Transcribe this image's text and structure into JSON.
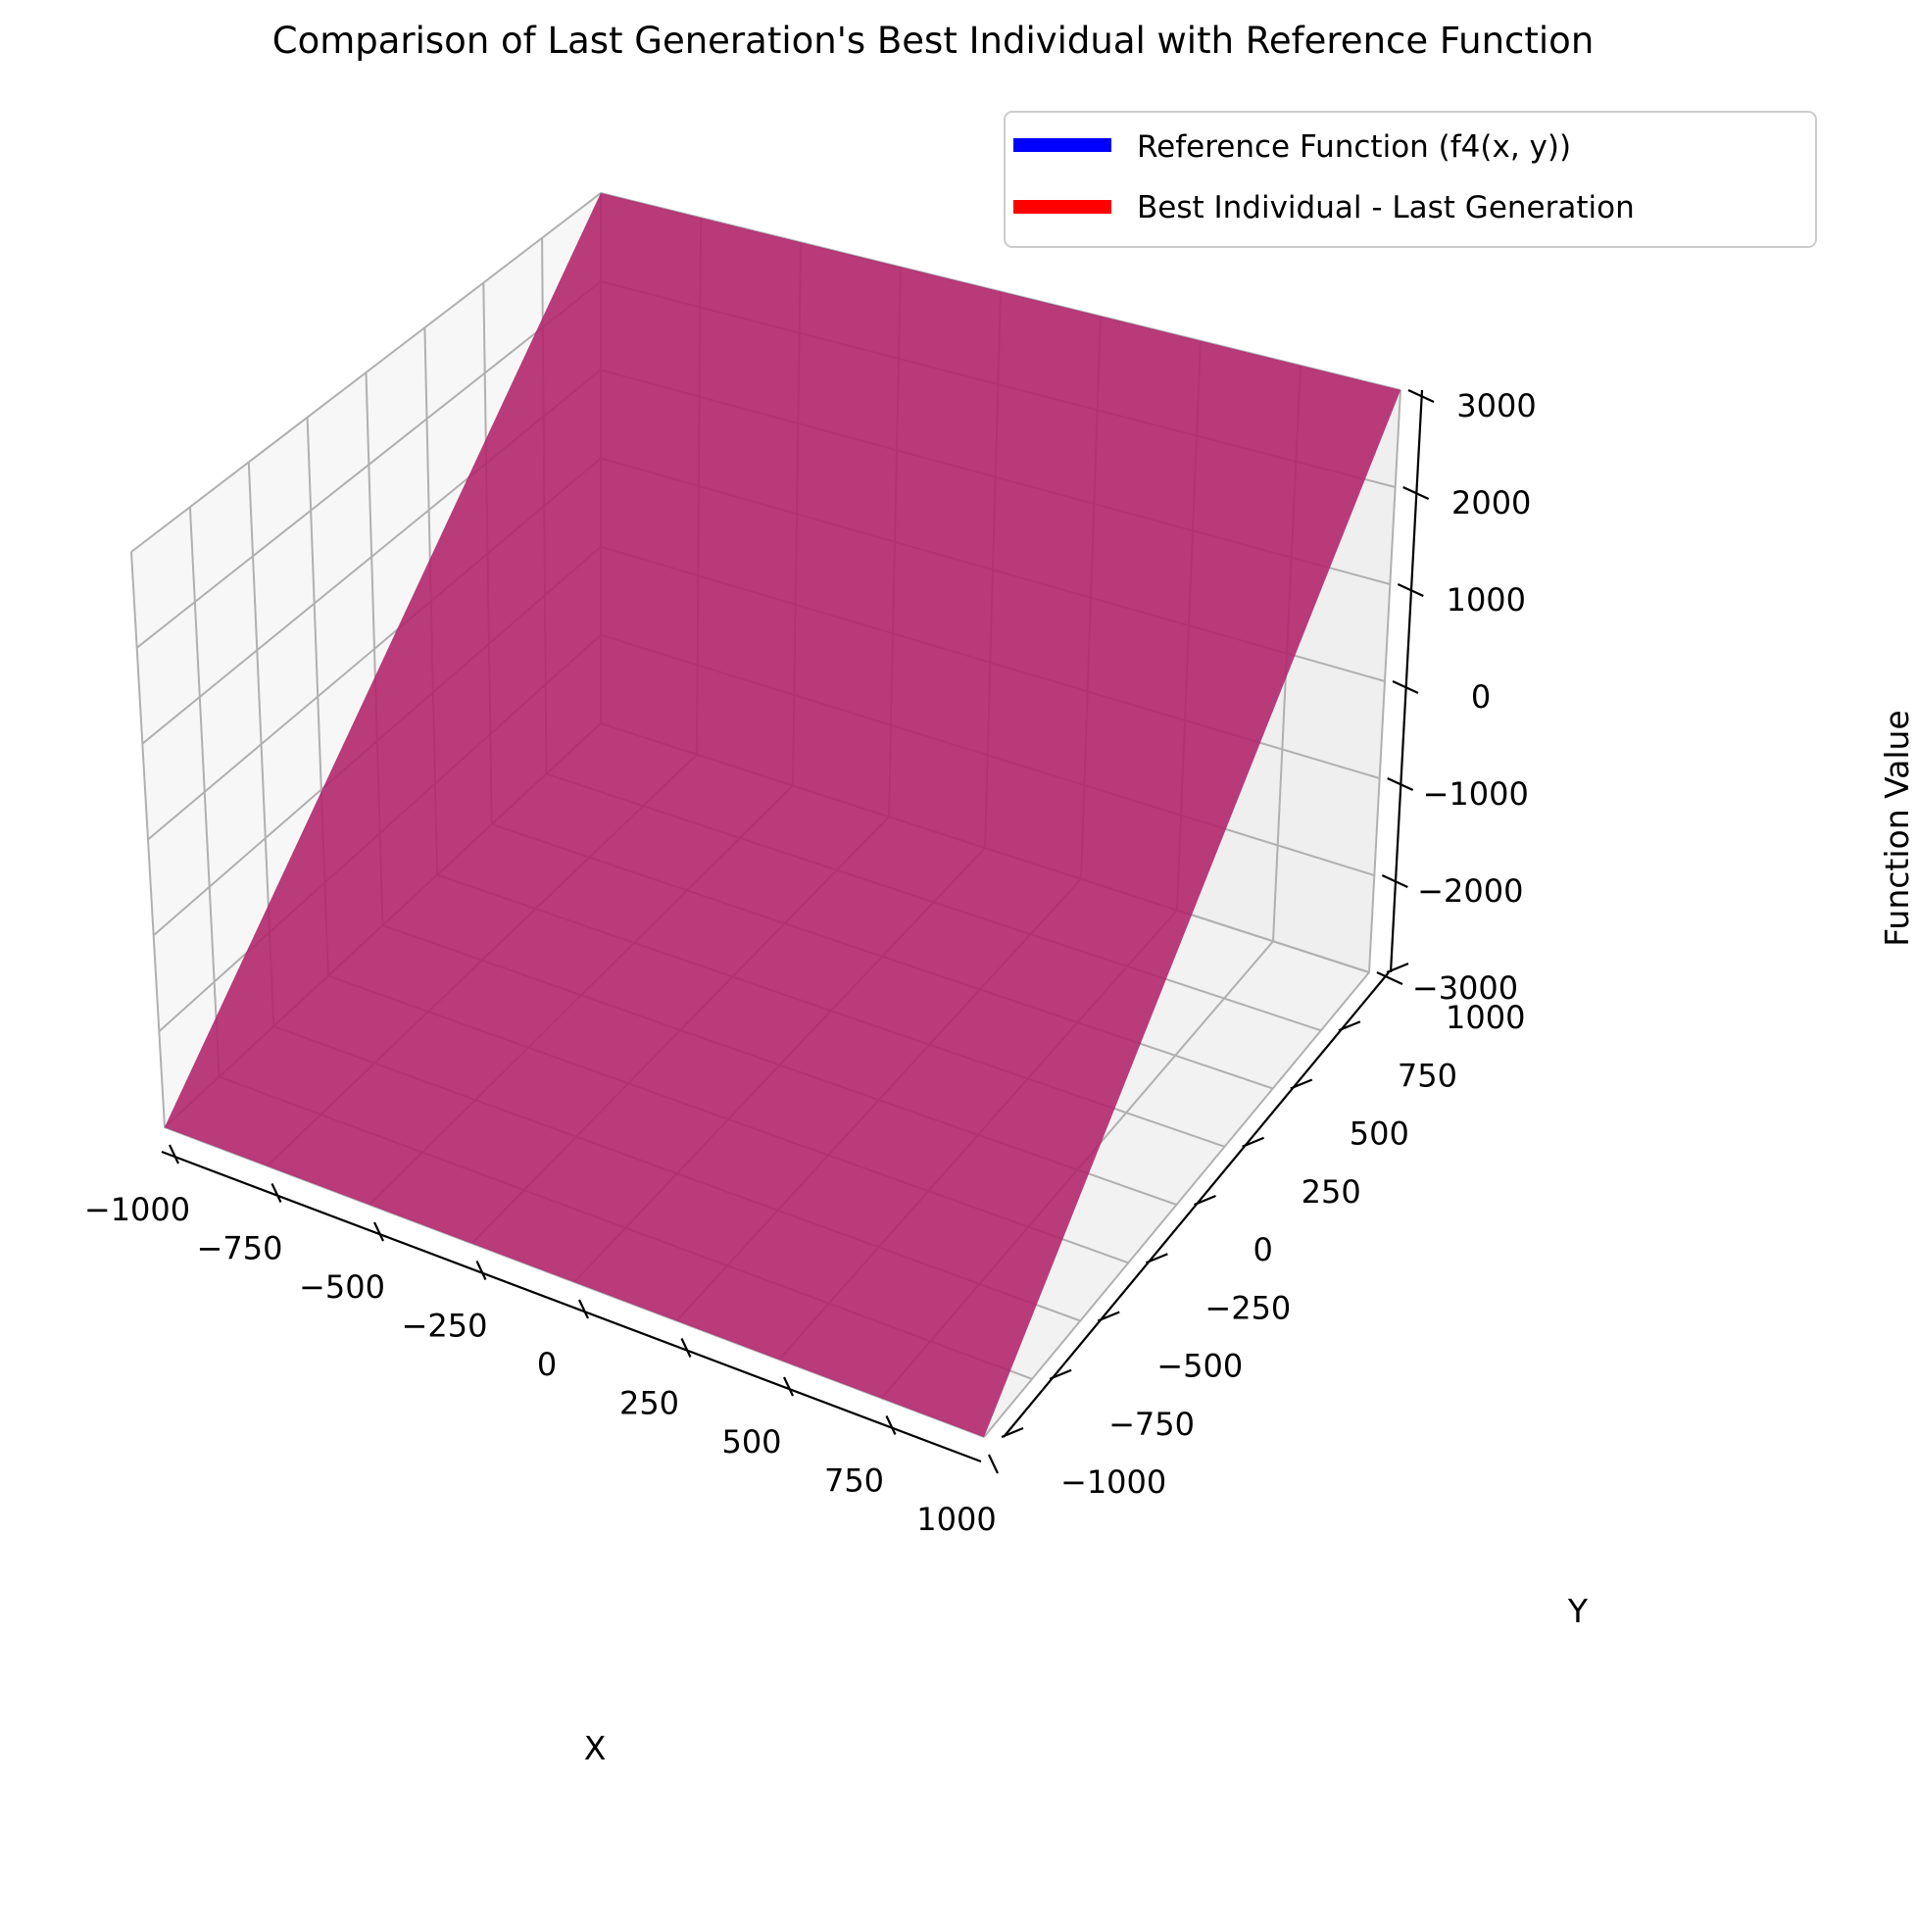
{
  "chart_data": {
    "type": "surface3d",
    "title": "Comparison of Last Generation's Best Individual with Reference Function",
    "xlabel": "X",
    "ylabel": "Y",
    "zlabel": "Function Value",
    "xlim": [
      -1000,
      1000
    ],
    "ylim": [
      -1000,
      1000
    ],
    "zlim": [
      -3000,
      3000
    ],
    "x_ticks": [
      "−1000",
      "−750",
      "−500",
      "−250",
      "0",
      "250",
      "500",
      "750",
      "1000"
    ],
    "y_ticks": [
      "−1000",
      "−750",
      "−500",
      "−250",
      "0",
      "250",
      "500",
      "750",
      "1000"
    ],
    "z_ticks": [
      "−3000",
      "−2000",
      "−1000",
      "0",
      "1000",
      "2000",
      "3000"
    ],
    "grid": true,
    "legend_position": "upper-right",
    "series": [
      {
        "name": "Reference Function (f4(x, y))",
        "color": "#0000ff",
        "corners": [
          {
            "x": -1000,
            "y": -1000,
            "z": -3000
          },
          {
            "x": 1000,
            "y": -1000,
            "z": -3000
          },
          {
            "x": 1000,
            "y": 1000,
            "z": 3000
          },
          {
            "x": -1000,
            "y": 1000,
            "z": 3000
          }
        ]
      },
      {
        "name": "Best Individual - Last Generation",
        "color": "#ff0000",
        "corners": [
          {
            "x": -1000,
            "y": -1000,
            "z": -3000
          },
          {
            "x": 1000,
            "y": -1000,
            "z": -3000
          },
          {
            "x": 1000,
            "y": 1000,
            "z": 3000
          },
          {
            "x": -1000,
            "y": 1000,
            "z": 3000
          }
        ]
      }
    ],
    "surface_overlap_color": "#b83a79"
  }
}
